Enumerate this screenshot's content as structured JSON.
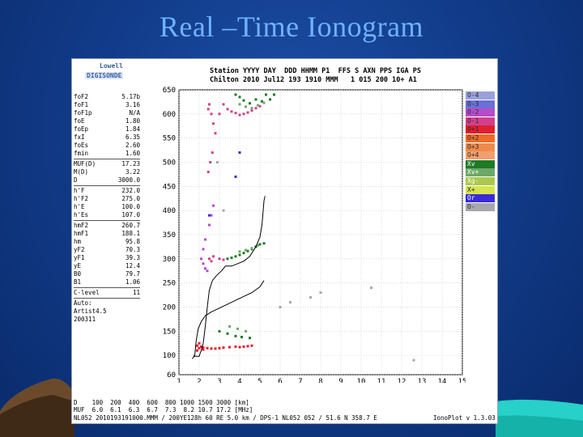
{
  "slide": {
    "title": "Real –Time Ionogram"
  },
  "logo": {
    "line1": "Lowell",
    "line2": "DIGISONDE"
  },
  "header": {
    "labels": "Station YYYY DAY  DDD HHMM P1  FFS S AXN PPS IGA PS",
    "values": "Chilton 2010 Jul12 193 1910 MMM   1 015 200 10+ A1"
  },
  "params_group1": [
    {
      "name": "foF2",
      "value": "5.17b"
    },
    {
      "name": "foF1",
      "value": "3.16"
    },
    {
      "name": "foF1p",
      "value": "N/A"
    },
    {
      "name": "foE",
      "value": "1.80"
    },
    {
      "name": "foEp",
      "value": "1.84"
    },
    {
      "name": "fxI",
      "value": "6.35"
    },
    {
      "name": "foEs",
      "value": "2.60"
    },
    {
      "name": "fmin",
      "value": "1.60"
    }
  ],
  "params_group2": [
    {
      "name": "MUF(D)",
      "value": "17.23"
    },
    {
      "name": "M(D)",
      "value": "3.22"
    },
    {
      "name": "D",
      "value": "3000.0"
    }
  ],
  "params_group3": [
    {
      "name": "h'F",
      "value": "232.0"
    },
    {
      "name": "h'F2",
      "value": "275.0"
    },
    {
      "name": "h'E",
      "value": "100.0"
    },
    {
      "name": "h'Es",
      "value": "107.0"
    }
  ],
  "params_group4": [
    {
      "name": "hmF2",
      "value": "260.7"
    },
    {
      "name": "hmF1",
      "value": "188.1"
    },
    {
      "name": "hm",
      "value": "95.8"
    },
    {
      "name": "yF2",
      "value": "70.3"
    },
    {
      "name": "yF1",
      "value": "39.3"
    },
    {
      "name": "yE",
      "value": "12.4"
    },
    {
      "name": "B0",
      "value": "79.7"
    },
    {
      "name": "B1",
      "value": "1.06"
    }
  ],
  "params_group5": [
    {
      "name": "C-level",
      "value": "11"
    }
  ],
  "autoscaling": {
    "label": "Auto:",
    "software": "Artist4.5",
    "code": "200311"
  },
  "legend": [
    {
      "label": "O-4",
      "color": "#9aa0dc"
    },
    {
      "label": "O-3",
      "color": "#6b6fd6"
    },
    {
      "label": "O-2",
      "color": "#b54cc8"
    },
    {
      "label": "O-1",
      "color": "#d1408a"
    },
    {
      "label": "O+1",
      "color": "#e01e2e"
    },
    {
      "label": "O+2",
      "color": "#ee6a28"
    },
    {
      "label": "O+3",
      "color": "#f08a4c"
    },
    {
      "label": "O+4",
      "color": "#f0a070"
    },
    {
      "label": "Xv",
      "color": "#1e7a26"
    },
    {
      "label": "Xv+",
      "color": "#6ea868"
    },
    {
      "label": "Xg-",
      "color": "#aac84c"
    },
    {
      "label": "X+",
      "color": "#d6e450"
    },
    {
      "label": "Or",
      "color": "#3a2ad8"
    },
    {
      "label": "O-",
      "color": "#a7a7ad"
    }
  ],
  "footer": {
    "dist_row": "D    100  200  400  600  800 1000 1500 3000 [km]",
    "muf_row": "MUF  6.0  6.1  6.3  6.7  7.3  8.2 10.7 17.2 [MHz]",
    "info_row": "NL052 2010193191000.MMM / 200YE128h 60 RE 5.0 km / DPS-1 NL052 052 / 51.6 N 358.7 E",
    "version": "IonoPlot v 1.3.03"
  },
  "chart_data": {
    "type": "scatter",
    "title": "",
    "xlabel": "",
    "ylabel": "",
    "xlim": [
      1,
      15
    ],
    "ylim": [
      60,
      650
    ],
    "x_ticks": [
      1,
      2,
      3,
      4,
      5,
      6,
      7,
      8,
      9,
      10,
      11,
      12,
      13,
      14,
      15
    ],
    "y_ticks": [
      60,
      100,
      150,
      200,
      250,
      300,
      350,
      400,
      450,
      500,
      550,
      600,
      650
    ],
    "grid": true,
    "series": [
      {
        "name": "O-1",
        "color": "#d1408a",
        "points": [
          [
            2.45,
            610
          ],
          [
            2.5,
            620
          ],
          [
            2.6,
            600
          ],
          [
            2.7,
            580
          ],
          [
            2.8,
            560
          ],
          [
            3.0,
            600
          ],
          [
            3.2,
            620
          ],
          [
            3.4,
            610
          ],
          [
            3.6,
            605
          ],
          [
            3.8,
            602
          ],
          [
            4.0,
            598
          ],
          [
            4.2,
            600
          ],
          [
            4.4,
            603
          ],
          [
            4.6,
            607
          ],
          [
            4.8,
            612
          ],
          [
            5.0,
            616
          ],
          [
            2.5,
            300
          ],
          [
            2.6,
            295
          ],
          [
            2.7,
            305
          ],
          [
            3.0,
            300
          ],
          [
            3.2,
            298
          ],
          [
            2.55,
            500
          ],
          [
            2.65,
            520
          ],
          [
            2.45,
            480
          ]
        ]
      },
      {
        "name": "O+1",
        "color": "#e01e2e",
        "points": [
          [
            1.9,
            120
          ],
          [
            2.0,
            125
          ],
          [
            2.1,
            118
          ],
          [
            2.2,
            116
          ],
          [
            2.4,
            115
          ],
          [
            2.6,
            114
          ],
          [
            2.8,
            114
          ],
          [
            3.0,
            115
          ],
          [
            3.2,
            116
          ],
          [
            3.5,
            117
          ],
          [
            3.8,
            118
          ],
          [
            4.0,
            117
          ],
          [
            4.2,
            118
          ],
          [
            4.4,
            119
          ],
          [
            4.6,
            120
          ],
          [
            1.9,
            110
          ],
          [
            2.0,
            115
          ],
          [
            2.2,
            112
          ]
        ]
      },
      {
        "name": "Xv",
        "color": "#1e7a26",
        "points": [
          [
            3.8,
            640
          ],
          [
            4.0,
            635
          ],
          [
            4.2,
            628
          ],
          [
            4.5,
            622
          ],
          [
            4.8,
            630
          ],
          [
            5.1,
            626
          ],
          [
            5.3,
            640
          ],
          [
            5.5,
            630
          ],
          [
            5.7,
            640
          ],
          [
            3.4,
            300
          ],
          [
            3.6,
            302
          ],
          [
            3.8,
            305
          ],
          [
            4.0,
            308
          ],
          [
            4.2,
            312
          ],
          [
            4.4,
            316
          ],
          [
            4.6,
            320
          ],
          [
            4.8,
            325
          ],
          [
            5.0,
            330
          ],
          [
            5.2,
            332
          ],
          [
            3.0,
            150
          ],
          [
            3.4,
            145
          ],
          [
            3.8,
            140
          ],
          [
            4.1,
            138
          ],
          [
            4.5,
            136
          ]
        ]
      },
      {
        "name": "Xv+",
        "color": "#6ea868",
        "points": [
          [
            4.0,
            620
          ],
          [
            4.3,
            615
          ],
          [
            4.6,
            612
          ],
          [
            4.9,
            618
          ],
          [
            5.2,
            623
          ],
          [
            4.0,
            315
          ],
          [
            4.3,
            318
          ],
          [
            4.6,
            322
          ],
          [
            4.9,
            328
          ],
          [
            3.5,
            160
          ],
          [
            3.9,
            155
          ],
          [
            4.3,
            150
          ]
        ]
      },
      {
        "name": "O-2",
        "color": "#b54cc8",
        "points": [
          [
            2.6,
            390
          ],
          [
            2.7,
            410
          ],
          [
            2.5,
            370
          ],
          [
            2.3,
            340
          ],
          [
            2.2,
            320
          ],
          [
            2.1,
            300
          ],
          [
            2.2,
            290
          ],
          [
            2.3,
            280
          ],
          [
            2.4,
            275
          ]
        ]
      },
      {
        "name": "Or",
        "color": "#3a2ad8",
        "points": [
          [
            2.5,
            390
          ],
          [
            3.8,
            470
          ],
          [
            4.0,
            520
          ]
        ]
      },
      {
        "name": "O-",
        "color": "#a7a7ad",
        "points": [
          [
            6.0,
            200
          ],
          [
            6.5,
            210
          ],
          [
            7.5,
            220
          ],
          [
            8.0,
            230
          ],
          [
            10.5,
            240
          ],
          [
            12.6,
            90
          ],
          [
            2.9,
            500
          ],
          [
            3.2,
            400
          ]
        ]
      }
    ],
    "curves": [
      {
        "name": "profile",
        "color": "#000000",
        "points": [
          [
            1.65,
            93
          ],
          [
            1.72,
            96
          ],
          [
            1.78,
            100
          ],
          [
            1.85,
            130
          ],
          [
            1.95,
            155
          ],
          [
            2.1,
            170
          ],
          [
            2.3,
            182
          ],
          [
            2.6,
            190
          ],
          [
            3.0,
            198
          ],
          [
            3.4,
            206
          ],
          [
            3.8,
            214
          ],
          [
            4.2,
            222
          ],
          [
            4.6,
            230
          ],
          [
            5.0,
            242
          ],
          [
            5.2,
            255
          ]
        ]
      },
      {
        "name": "trace",
        "color": "#000000",
        "points": [
          [
            1.72,
            100
          ],
          [
            1.75,
            98
          ],
          [
            2.0,
            98
          ],
          [
            2.05,
            105
          ],
          [
            2.1,
            110
          ],
          [
            2.15,
            118
          ],
          [
            2.2,
            125
          ],
          [
            2.3,
            160
          ],
          [
            2.4,
            200
          ],
          [
            2.5,
            235
          ],
          [
            2.65,
            255
          ],
          [
            2.85,
            265
          ],
          [
            3.1,
            275
          ],
          [
            3.3,
            285
          ],
          [
            3.6,
            285
          ],
          [
            3.9,
            290
          ],
          [
            4.2,
            295
          ],
          [
            4.5,
            305
          ],
          [
            4.8,
            325
          ],
          [
            5.0,
            345
          ],
          [
            5.1,
            370
          ],
          [
            5.15,
            395
          ],
          [
            5.2,
            420
          ],
          [
            5.25,
            430
          ]
        ]
      }
    ]
  }
}
